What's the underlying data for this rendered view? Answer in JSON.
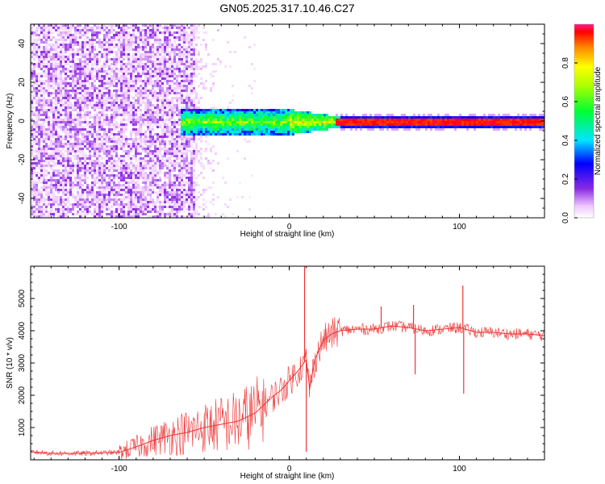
{
  "title": "GN05.2025.317.10.46.C27",
  "chart_data": [
    {
      "type": "heatmap",
      "xlabel": "Height of straight line (km)",
      "ylabel": "Frequency (Hz)",
      "xlim": [
        -152,
        150
      ],
      "ylim": [
        -50,
        50
      ],
      "xticks": [
        -100,
        0,
        100
      ],
      "yticks": [
        -40,
        -20,
        0,
        20,
        40
      ],
      "colorbar": {
        "label": "Normalized spectral amplitude",
        "range": [
          0,
          1
        ],
        "ticks": [
          0.0,
          0.2,
          0.4,
          0.6,
          0.8
        ]
      },
      "regions": [
        {
          "x_range": [
            -152,
            -56
          ],
          "frequency_span": [
            -50,
            50
          ],
          "amplitude": [
            0.02,
            0.15
          ]
        },
        {
          "x_range": [
            -56,
            -40
          ],
          "frequency_span": [
            -50,
            50
          ],
          "amplitude": [
            0.0,
            0.05
          ]
        },
        {
          "x_range": [
            -65,
            30
          ],
          "frequency_span": [
            -6,
            6
          ],
          "amplitude": [
            0.1,
            0.55
          ]
        },
        {
          "x_range": [
            30,
            150
          ],
          "frequency_span": [
            -1.5,
            1.5
          ],
          "amplitude": [
            0.85,
            1.0
          ]
        }
      ]
    },
    {
      "type": "line",
      "xlabel": "Height of straight line (km)",
      "ylabel": "SNR (10 * v/v)",
      "xlim": [
        -152,
        150
      ],
      "ylim": [
        0,
        6000
      ],
      "xticks": [
        -100,
        0,
        100
      ],
      "yticks": [
        1000,
        2000,
        3000,
        4000,
        5000
      ],
      "line_color": "#ee3333",
      "x": [
        -152,
        -140,
        -120,
        -100,
        -90,
        -80,
        -70,
        -60,
        -50,
        -40,
        -30,
        -20,
        -15,
        -10,
        -5,
        0,
        5,
        10,
        12,
        15,
        20,
        25,
        30,
        40,
        50,
        60,
        70,
        80,
        90,
        100,
        110,
        120,
        130,
        140,
        150
      ],
      "y": [
        250,
        200,
        200,
        230,
        400,
        600,
        750,
        850,
        1000,
        1100,
        1200,
        1450,
        1700,
        1950,
        2150,
        2450,
        2750,
        3100,
        2200,
        3100,
        3700,
        3900,
        4000,
        4050,
        4050,
        4150,
        4100,
        4000,
        4050,
        4100,
        3950,
        3950,
        3900,
        3900,
        3850
      ],
      "spikes": [
        {
          "x": 9,
          "y": 6000
        },
        {
          "x": 10,
          "y": 250
        },
        {
          "x": 54,
          "y": 4750
        },
        {
          "x": 73,
          "y": 4800
        },
        {
          "x": 74,
          "y": 2650
        },
        {
          "x": 102,
          "y": 5400
        },
        {
          "x": 102.5,
          "y": 2050
        }
      ]
    }
  ]
}
